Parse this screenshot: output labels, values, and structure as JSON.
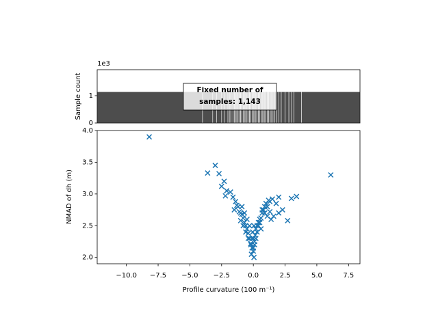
{
  "chart_data": [
    {
      "type": "histogram",
      "ylabel": "Sample count",
      "offset_label": "1e3",
      "annotation": [
        "Fixed number of",
        "samples: 1,143"
      ],
      "color": "#4d4d4d",
      "bins": [
        -12.3,
        -4.0,
        -3.2,
        -2.9,
        -2.5,
        -2.3,
        -2.0,
        -1.85,
        -1.75,
        -1.6,
        -1.5,
        -1.4,
        -1.3,
        -1.2,
        -1.1,
        -1.0,
        -0.9,
        -0.8,
        -0.7,
        -0.6,
        -0.5,
        -0.4,
        -0.3,
        -0.2,
        -0.1,
        0.0,
        0.1,
        0.2,
        0.3,
        0.4,
        0.5,
        0.6,
        0.7,
        0.8,
        0.9,
        1.0,
        1.1,
        1.2,
        1.3,
        1.4,
        1.55,
        1.7,
        1.85,
        2.0,
        2.2,
        2.5,
        2.8,
        3.0,
        3.2,
        3.8,
        8.4
      ],
      "counts": [
        1.143,
        1.143,
        1.143,
        1.143,
        1.143,
        1.143,
        1.143,
        1.143,
        1.143,
        1.143,
        1.143,
        1.143,
        1.143,
        1.143,
        1.143,
        1.143,
        1.143,
        1.143,
        1.143,
        1.143,
        1.143,
        1.143,
        1.143,
        1.143,
        1.143,
        1.143,
        1.143,
        1.143,
        1.143,
        1.143,
        1.143,
        1.143,
        1.143,
        1.143,
        1.143,
        1.143,
        1.143,
        1.143,
        1.143,
        1.143,
        1.143,
        1.143,
        1.143,
        1.143,
        1.143,
        1.143,
        1.143,
        1.143,
        1.143,
        1.143
      ],
      "xlim": [
        -12.3,
        8.4
      ],
      "ylim": [
        0,
        1.95
      ],
      "yticks": [
        0,
        1
      ]
    },
    {
      "type": "scatter",
      "xlabel": "Profile curvature (100 m⁻¹)",
      "ylabel": "NMAD of dh (m)",
      "color": "#1f77b4",
      "xlim": [
        -12.3,
        8.4
      ],
      "ylim": [
        1.9,
        4.0
      ],
      "xticks": [
        {
          "value": -10,
          "label": "−10.0"
        },
        {
          "value": -7.5,
          "label": "−7.5"
        },
        {
          "value": -5,
          "label": "−5.0"
        },
        {
          "value": -2.5,
          "label": "−2.5"
        },
        {
          "value": 0,
          "label": "0.0"
        },
        2.5,
        {
          "value": 5,
          "label": "5.0"
        },
        7.5
      ],
      "yticks": [
        {
          "value": 2,
          "label": "2.0"
        },
        2.5,
        {
          "value": 3,
          "label": "3.0"
        },
        3.5,
        {
          "value": 4,
          "label": "4.0"
        }
      ],
      "x": [
        -8.2,
        -3.6,
        -3.0,
        -2.7,
        -2.5,
        -2.3,
        -2.1,
        -2.2,
        -1.8,
        -1.6,
        -1.4,
        -1.5,
        -1.2,
        -1.0,
        6.1,
        3.4,
        3.0,
        2.7,
        2.3,
        2.0,
        1.8,
        1.5,
        1.3,
        1.6,
        2.0,
        -1.3,
        -1.1,
        -0.9,
        -0.8,
        -0.7,
        -0.6,
        -0.5,
        -0.4,
        -0.3,
        -0.2,
        -0.1,
        0.0,
        0.1,
        0.2,
        0.3,
        0.4,
        0.5,
        0.6,
        0.7,
        0.8,
        0.9,
        1.0,
        1.1,
        1.2,
        -0.9,
        -0.7,
        -0.5,
        -0.3,
        -0.1,
        0.05,
        0.15,
        0.3,
        0.5,
        0.7,
        0.9,
        1.1,
        -0.6,
        -0.4,
        -0.2,
        0.0,
        0.2,
        0.4,
        0.6,
        -0.15,
        0.0,
        0.1,
        -0.05,
        0.05,
        1.4,
        1.3,
        -1.0,
        -0.8
      ],
      "values": [
        3.9,
        3.33,
        3.45,
        3.32,
        3.12,
        3.2,
        3.05,
        2.97,
        3.03,
        2.95,
        2.88,
        2.75,
        2.8,
        2.7,
        3.3,
        2.96,
        2.93,
        2.58,
        2.75,
        2.95,
        2.85,
        2.92,
        2.88,
        2.65,
        2.7,
        2.82,
        2.72,
        2.68,
        2.62,
        2.55,
        2.5,
        2.45,
        2.38,
        2.3,
        2.22,
        2.15,
        2.1,
        2.2,
        2.3,
        2.4,
        2.5,
        2.55,
        2.62,
        2.7,
        2.75,
        2.8,
        2.85,
        2.8,
        2.9,
        2.8,
        2.7,
        2.6,
        2.5,
        2.3,
        2.0,
        2.35,
        2.5,
        2.6,
        2.75,
        2.7,
        2.65,
        2.4,
        2.3,
        2.2,
        2.3,
        2.45,
        2.55,
        2.45,
        2.05,
        2.15,
        2.25,
        2.4,
        2.5,
        2.6,
        2.72,
        2.58,
        2.5
      ]
    }
  ]
}
